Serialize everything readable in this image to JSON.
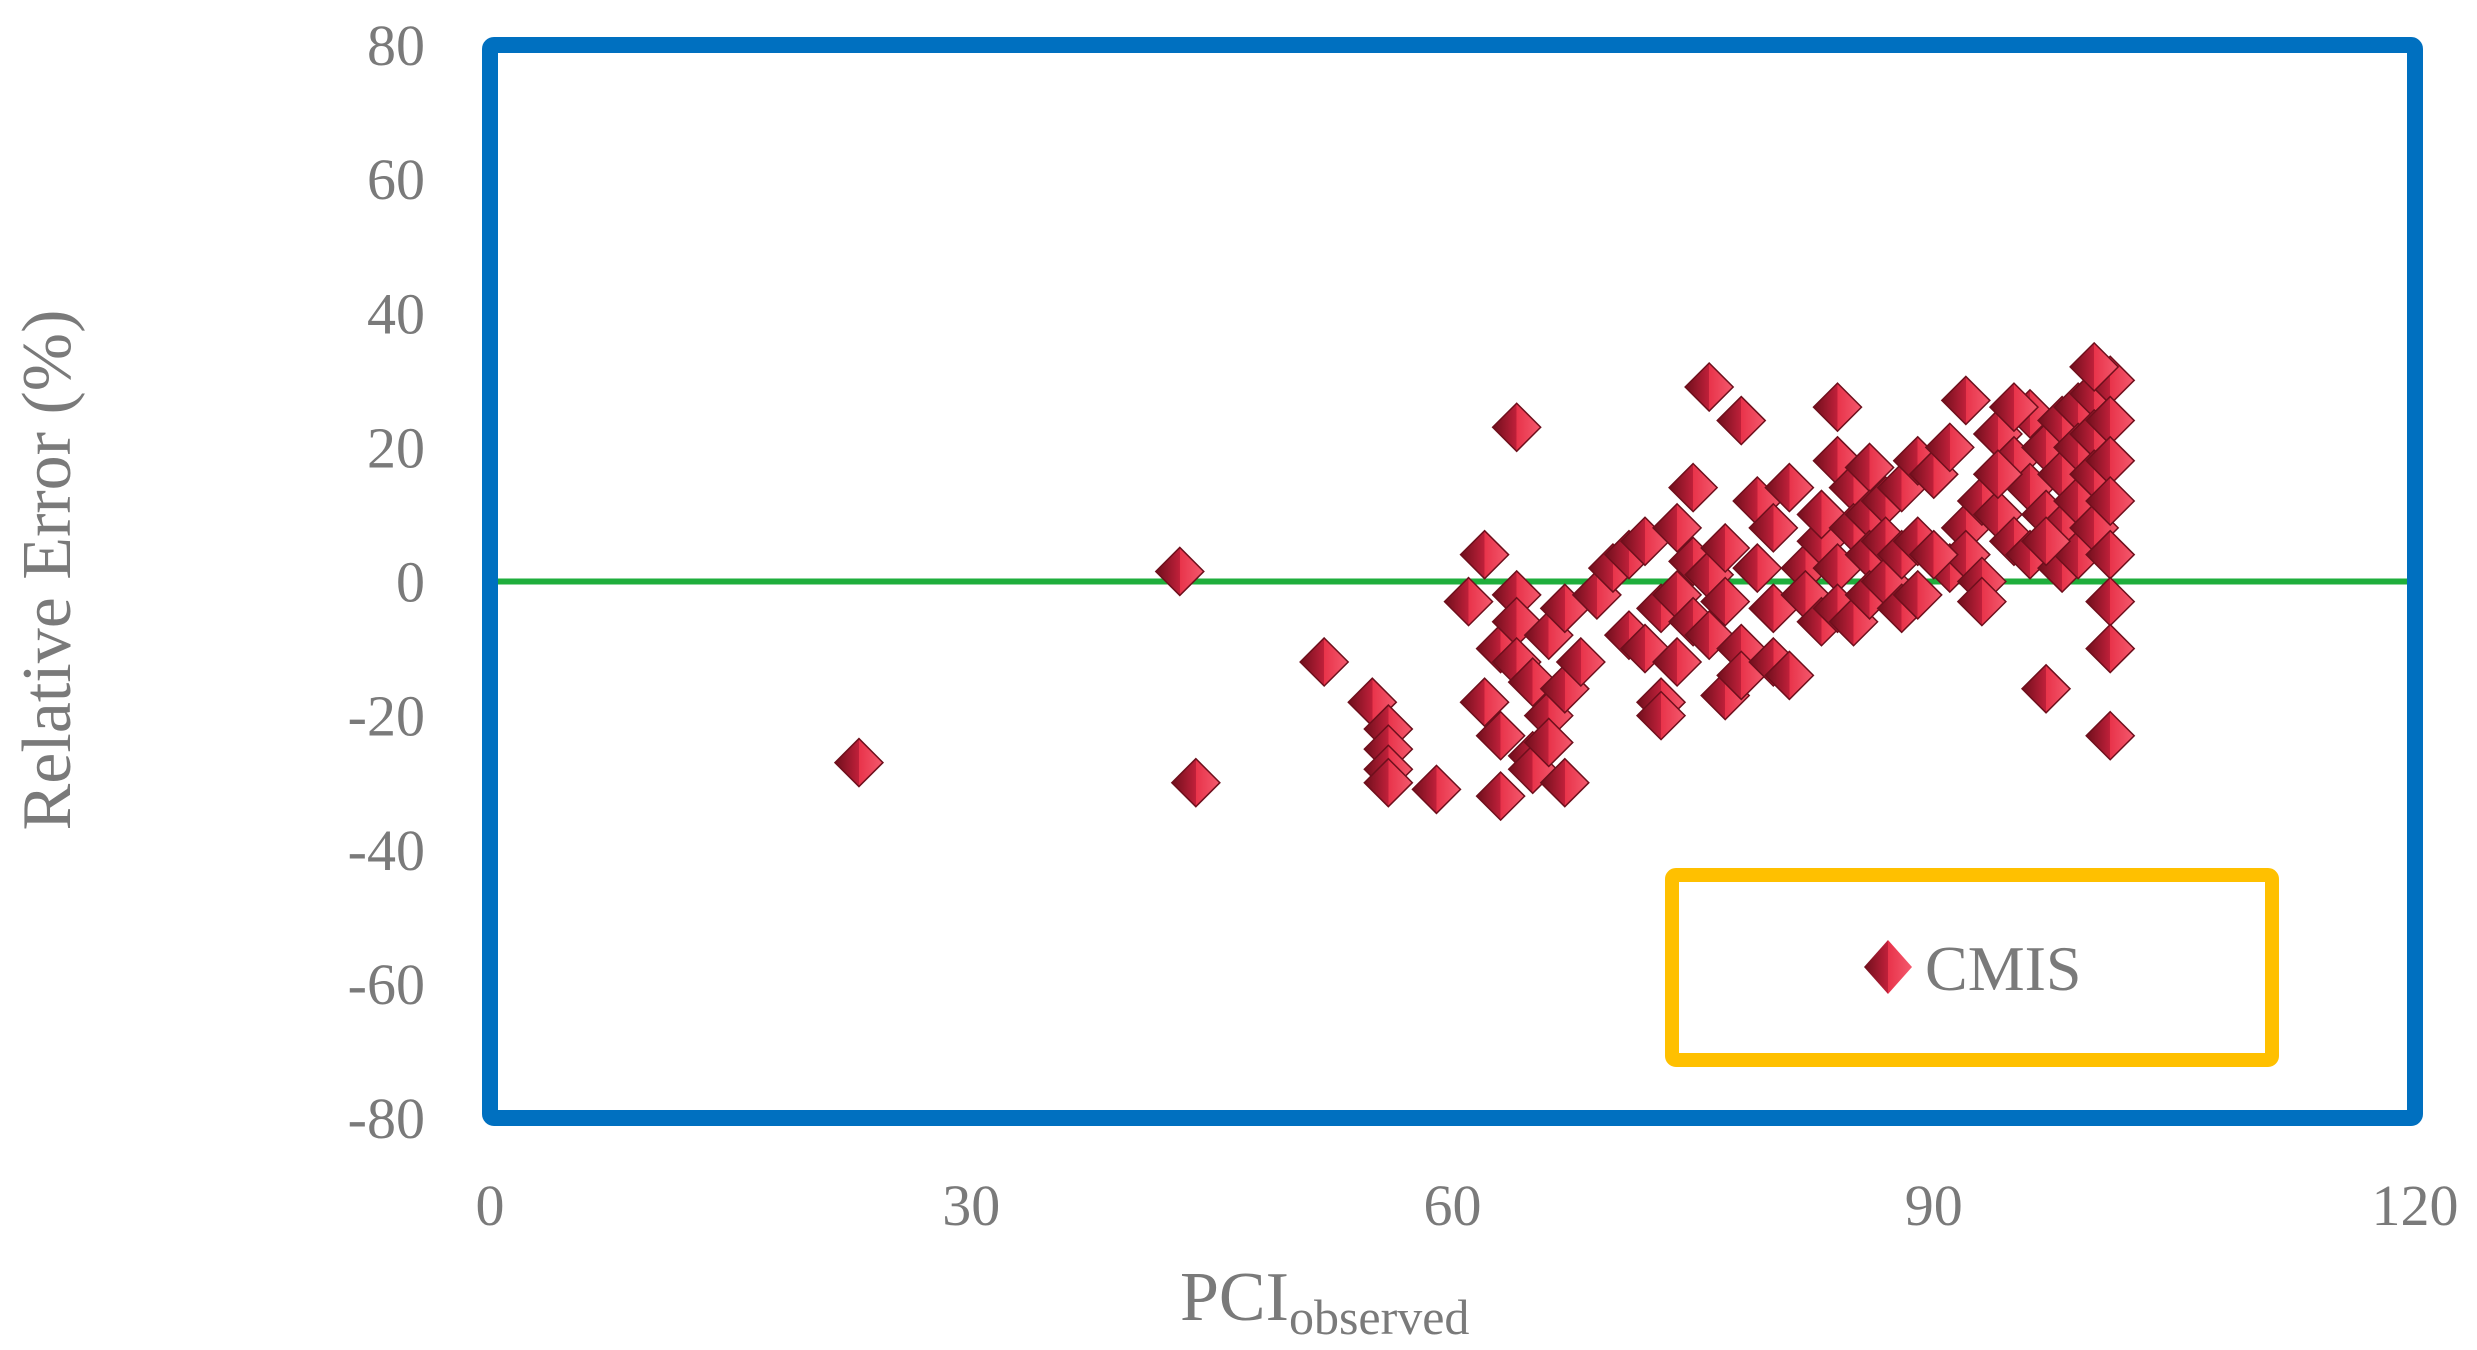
{
  "chart_data": {
    "type": "scatter",
    "xlabel": "PCI",
    "xlabel_subscript": "observed",
    "ylabel": "Relative Error (%)",
    "xlim": [
      0,
      120
    ],
    "ylim": [
      -80,
      80
    ],
    "xticks": [
      "0",
      "30",
      "60",
      "90",
      "120"
    ],
    "yticks": [
      "80",
      "60",
      "40",
      "20",
      "0",
      "-20",
      "-40",
      "-60",
      "-80"
    ],
    "grid": false,
    "legend_position": "bottom-right",
    "reference_line": {
      "y": 0,
      "color": "#1fae3c"
    },
    "colors": {
      "plot_border": "#0070c0",
      "legend_border": "#ffc000",
      "marker_face": "#e8334a",
      "marker_dark": "#6e0f1c",
      "text": "#7a7a7a"
    },
    "series": [
      {
        "name": "CMIS",
        "marker": "diamond",
        "points": [
          [
            23,
            -27
          ],
          [
            43,
            1.5
          ],
          [
            44,
            -30
          ],
          [
            52,
            -12
          ],
          [
            55,
            -18
          ],
          [
            56,
            -22
          ],
          [
            56,
            -25
          ],
          [
            56,
            -28
          ],
          [
            56,
            -30
          ],
          [
            59,
            -31
          ],
          [
            61,
            -3
          ],
          [
            62,
            4
          ],
          [
            62,
            -18
          ],
          [
            63,
            -10
          ],
          [
            63,
            -23
          ],
          [
            63,
            -32
          ],
          [
            64,
            23
          ],
          [
            64,
            -2
          ],
          [
            64,
            -6
          ],
          [
            64,
            -12
          ],
          [
            65,
            -26
          ],
          [
            65,
            -28
          ],
          [
            65,
            -15
          ],
          [
            66,
            -8
          ],
          [
            66,
            -20
          ],
          [
            66,
            -24
          ],
          [
            67,
            -30
          ],
          [
            67,
            -4
          ],
          [
            67,
            -16
          ],
          [
            68,
            -12
          ],
          [
            69,
            -2
          ],
          [
            70,
            2
          ],
          [
            71,
            -8
          ],
          [
            71,
            4
          ],
          [
            72,
            6
          ],
          [
            72,
            -10
          ],
          [
            73,
            -4
          ],
          [
            73,
            -18
          ],
          [
            73,
            -20
          ],
          [
            74,
            8
          ],
          [
            74,
            -2
          ],
          [
            74,
            -12
          ],
          [
            75,
            14
          ],
          [
            75,
            3
          ],
          [
            75,
            -6
          ],
          [
            76,
            29
          ],
          [
            76,
            1
          ],
          [
            76,
            -8
          ],
          [
            77,
            5
          ],
          [
            77,
            -3
          ],
          [
            77,
            -17
          ],
          [
            78,
            24
          ],
          [
            78,
            -10
          ],
          [
            78,
            -14
          ],
          [
            79,
            2
          ],
          [
            79,
            12
          ],
          [
            80,
            8
          ],
          [
            80,
            -4
          ],
          [
            80,
            -12
          ],
          [
            81,
            14
          ],
          [
            81,
            -14
          ],
          [
            82,
            2
          ],
          [
            82,
            -2
          ],
          [
            83,
            6
          ],
          [
            83,
            10
          ],
          [
            83,
            -6
          ],
          [
            84,
            18
          ],
          [
            84,
            26
          ],
          [
            84,
            2
          ],
          [
            84,
            -4
          ],
          [
            85,
            14
          ],
          [
            85,
            8
          ],
          [
            85,
            -6
          ],
          [
            86,
            17
          ],
          [
            86,
            10
          ],
          [
            86,
            4
          ],
          [
            86,
            -2
          ],
          [
            87,
            12
          ],
          [
            87,
            6
          ],
          [
            87,
            0
          ],
          [
            88,
            14
          ],
          [
            88,
            4
          ],
          [
            88,
            -4
          ],
          [
            89,
            18
          ],
          [
            89,
            6
          ],
          [
            89,
            -2
          ],
          [
            90,
            16
          ],
          [
            91,
            20
          ],
          [
            91,
            2
          ],
          [
            92,
            27
          ],
          [
            92,
            8
          ],
          [
            92,
            4
          ],
          [
            93,
            12
          ],
          [
            93,
            0
          ],
          [
            93,
            -3
          ],
          [
            94,
            22
          ],
          [
            94,
            10
          ],
          [
            95,
            18
          ],
          [
            95,
            6
          ],
          [
            96,
            25
          ],
          [
            96,
            14
          ],
          [
            96,
            4
          ],
          [
            97,
            20
          ],
          [
            97,
            10
          ],
          [
            97,
            -16
          ],
          [
            98,
            24
          ],
          [
            98,
            16
          ],
          [
            98,
            8
          ],
          [
            98,
            2
          ],
          [
            99,
            26
          ],
          [
            99,
            20
          ],
          [
            99,
            12
          ],
          [
            99,
            4
          ],
          [
            100,
            28
          ],
          [
            100,
            22
          ],
          [
            100,
            16
          ],
          [
            100,
            8
          ],
          [
            101,
            30
          ],
          [
            101,
            24
          ],
          [
            101,
            18
          ],
          [
            101,
            12
          ],
          [
            101,
            4
          ],
          [
            101,
            -3
          ],
          [
            101,
            -10
          ],
          [
            101,
            -23
          ],
          [
            100,
            32
          ],
          [
            95,
            26
          ],
          [
            94,
            16
          ],
          [
            97,
            6
          ],
          [
            90,
            4
          ]
        ]
      }
    ]
  }
}
